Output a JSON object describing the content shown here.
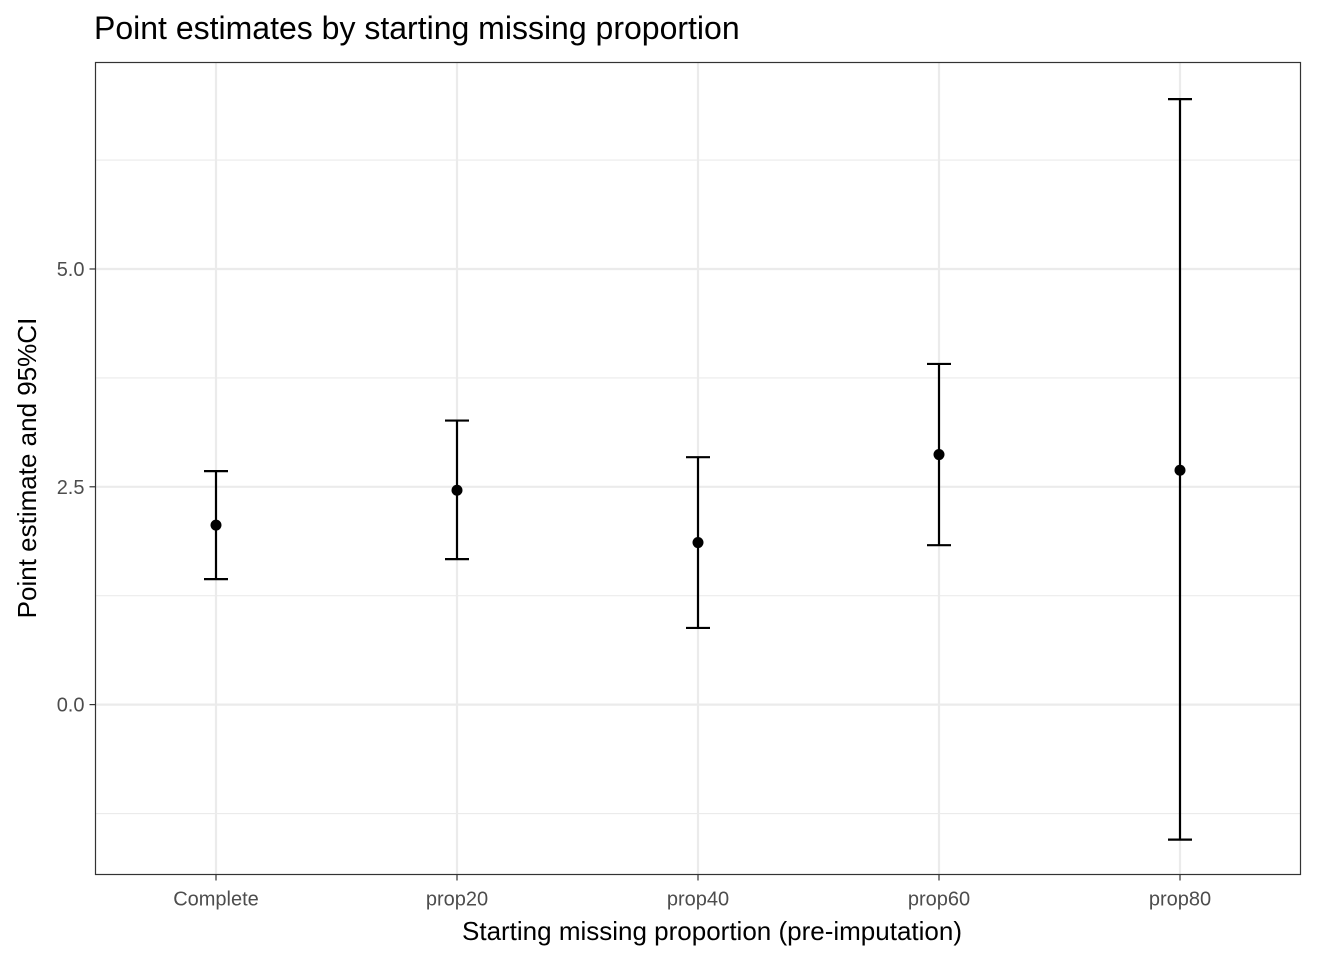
{
  "chart_data": {
    "type": "errorbar",
    "title": "Point estimates by starting missing proportion",
    "xlabel": "Starting missing proportion (pre-imputation)",
    "ylabel": "Point estimate and 95%CI",
    "categories": [
      "Complete",
      "prop20",
      "prop40",
      "prop60",
      "prop80"
    ],
    "series": [
      {
        "estimate": [
          2.06,
          2.46,
          1.86,
          2.87,
          2.69
        ],
        "lower": [
          1.44,
          1.67,
          0.88,
          1.83,
          -1.55
        ],
        "upper": [
          2.68,
          3.26,
          2.84,
          3.91,
          6.95
        ]
      }
    ],
    "ylim": [
      -1.95,
      7.37
    ],
    "y_ticks": [
      0.0,
      2.5,
      5.0
    ],
    "y_tick_labels": [
      "0.0",
      "2.5",
      "5.0"
    ],
    "y_minor_ticks": [
      -1.25,
      1.25,
      3.75,
      6.25
    ],
    "grid": true,
    "theme": "bw",
    "colors": {
      "points": "#000000",
      "grid": "#ebebeb",
      "panel_border": "#333333",
      "tick_text": "#4d4d4d"
    }
  }
}
